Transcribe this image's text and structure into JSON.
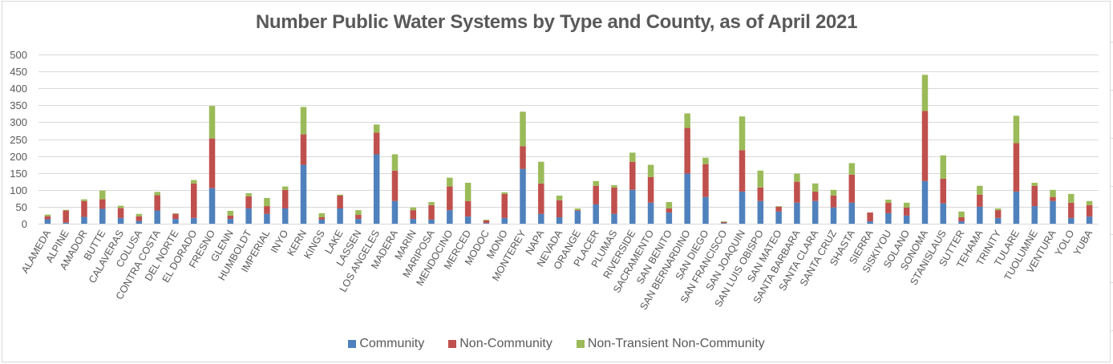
{
  "chart_data": {
    "type": "bar",
    "stacked": true,
    "title": "Number Public Water Systems by Type and County, as of April 2021",
    "xlabel": "",
    "ylabel": "",
    "ylim": [
      0,
      500
    ],
    "yticks": [
      "0",
      "50",
      "100",
      "150",
      "200",
      "250",
      "300",
      "350",
      "400",
      "450",
      "500"
    ],
    "grid": true,
    "legend_position": "bottom",
    "categories": [
      "ALAMEDA",
      "ALPINE",
      "AMADOR",
      "BUTTE",
      "CALAVERAS",
      "COLUSA",
      "CONTRA COSTA",
      "DEL NORTE",
      "EL DORADO",
      "FRESNO",
      "GLENN",
      "HUMBOLDT",
      "IMPERIAL",
      "INYO",
      "KERN",
      "KINGS",
      "LAKE",
      "LASSEN",
      "LOS ANGELES",
      "MADERA",
      "MARIN",
      "MARIPOSA",
      "MENDOCINO",
      "MERCED",
      "MODOC",
      "MONO",
      "MONTEREY",
      "NAPA",
      "NEVADA",
      "ORANGE",
      "PLACER",
      "PLUMAS",
      "RIVERSIDE",
      "SACRAMENTO",
      "SAN BENITO",
      "SAN BERNARDINO",
      "SAN DIEGO",
      "SAN FRANCISCO",
      "SAN JOAQUIN",
      "SAN LUIS OBISPO",
      "SAN MATEO",
      "SANTA BARBARA",
      "SANTA CLARA",
      "SANTA CRUZ",
      "SHASTA",
      "SIERRA",
      "SISKIYOU",
      "SOLANO",
      "SONOMA",
      "STANISLAUS",
      "SUTTER",
      "TEHAMA",
      "TRINITY",
      "TULARE",
      "TUOLUMNE",
      "VENTURA",
      "YOLO",
      "YUBA"
    ],
    "series": [
      {
        "name": "Community",
        "color": "#4f81bd",
        "values": [
          13,
          3,
          20,
          44,
          17,
          8,
          39,
          14,
          17,
          105,
          14,
          45,
          29,
          45,
          174,
          12,
          45,
          14,
          205,
          67,
          14,
          12,
          40,
          21,
          2,
          17,
          162,
          29,
          19,
          38,
          57,
          29,
          100,
          62,
          33,
          148,
          79,
          2,
          95,
          67,
          36,
          62,
          67,
          48,
          62,
          7,
          31,
          24,
          126,
          60,
          7,
          50,
          17,
          95,
          52,
          67,
          17,
          21
        ]
      },
      {
        "name": "Non-Community",
        "color": "#c0504d",
        "values": [
          9,
          36,
          47,
          28,
          29,
          14,
          45,
          15,
          102,
          147,
          10,
          36,
          23,
          55,
          90,
          7,
          38,
          12,
          64,
          90,
          26,
          43,
          70,
          46,
          8,
          71,
          67,
          90,
          50,
          2,
          55,
          78,
          83,
          76,
          12,
          135,
          97,
          3,
          122,
          40,
          14,
          62,
          28,
          35,
          83,
          26,
          31,
          24,
          207,
          73,
          12,
          36,
          23,
          143,
          60,
          12,
          45,
          34
        ]
      },
      {
        "name": "Non-Transient Non-Community",
        "color": "#9bbb59",
        "values": [
          5,
          2,
          5,
          26,
          7,
          7,
          10,
          2,
          10,
          96,
          14,
          9,
          24,
          10,
          81,
          12,
          3,
          14,
          24,
          48,
          8,
          9,
          26,
          54,
          2,
          5,
          102,
          64,
          14,
          5,
          14,
          7,
          27,
          36,
          19,
          43,
          19,
          2,
          100,
          50,
          2,
          24,
          24,
          17,
          34,
          0,
          9,
          14,
          107,
          69,
          17,
          26,
          5,
          81,
          9,
          21,
          26,
          12
        ]
      }
    ]
  }
}
